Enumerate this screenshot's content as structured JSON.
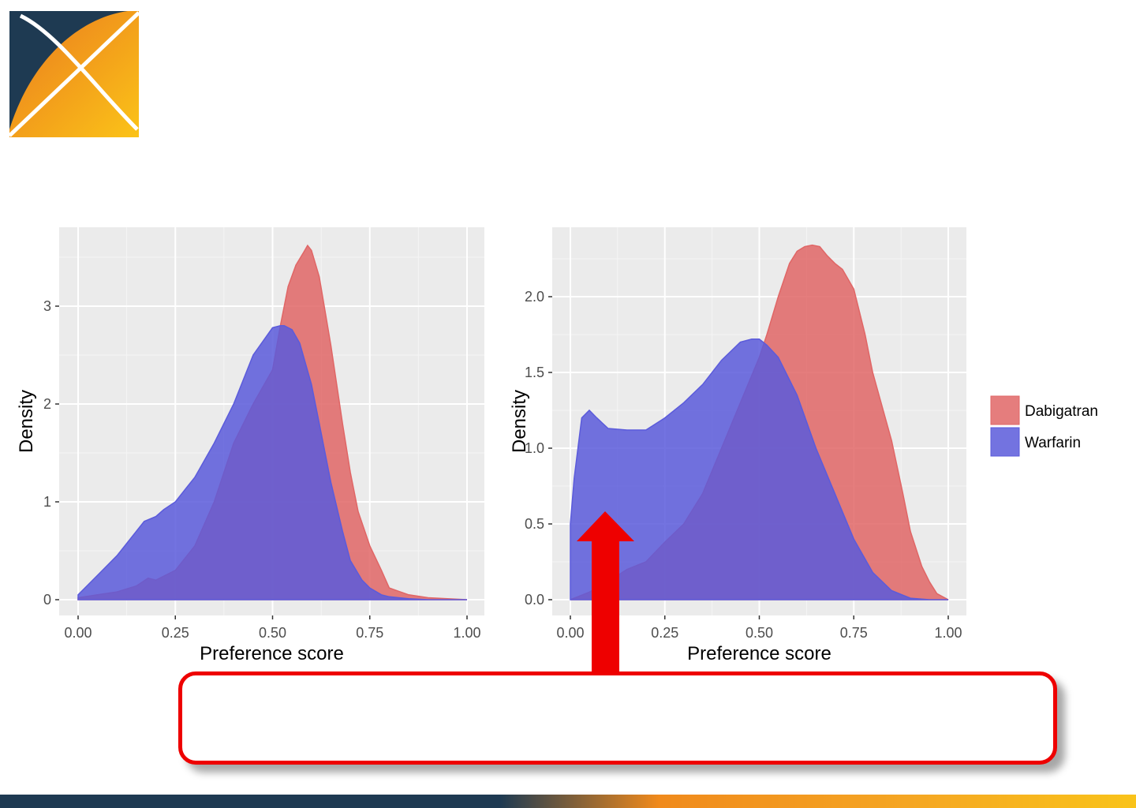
{
  "chart_data": [
    {
      "type": "area",
      "xlabel": "Preference score",
      "ylabel": "Density",
      "xlim": [
        0,
        1
      ],
      "ylim": [
        0,
        3.6
      ],
      "xticks": [
        "0.00",
        "0.25",
        "0.50",
        "0.75",
        "1.00"
      ],
      "yticks": [
        "0",
        "1",
        "2",
        "3"
      ],
      "ytick_values": [
        0,
        1,
        2,
        3
      ],
      "grid": true,
      "series": [
        {
          "name": "Dabigatran",
          "color": "#e06666",
          "x": [
            0.0,
            0.05,
            0.1,
            0.15,
            0.18,
            0.2,
            0.25,
            0.3,
            0.35,
            0.4,
            0.45,
            0.5,
            0.52,
            0.54,
            0.56,
            0.58,
            0.59,
            0.6,
            0.62,
            0.65,
            0.68,
            0.7,
            0.72,
            0.75,
            0.78,
            0.8,
            0.85,
            0.9,
            0.95,
            1.0
          ],
          "y": [
            0.02,
            0.05,
            0.08,
            0.14,
            0.22,
            0.2,
            0.3,
            0.55,
            1.0,
            1.6,
            2.0,
            2.35,
            2.8,
            3.2,
            3.42,
            3.55,
            3.62,
            3.57,
            3.3,
            2.6,
            1.8,
            1.3,
            0.9,
            0.55,
            0.3,
            0.12,
            0.05,
            0.02,
            0.01,
            0.0
          ]
        },
        {
          "name": "Warfarin",
          "color": "#5b5bdb",
          "x": [
            0.0,
            0.05,
            0.1,
            0.15,
            0.17,
            0.2,
            0.22,
            0.25,
            0.28,
            0.3,
            0.35,
            0.4,
            0.45,
            0.5,
            0.52,
            0.53,
            0.55,
            0.57,
            0.6,
            0.62,
            0.65,
            0.68,
            0.7,
            0.73,
            0.75,
            0.78,
            0.8,
            0.85,
            0.9,
            1.0
          ],
          "y": [
            0.05,
            0.25,
            0.45,
            0.7,
            0.8,
            0.85,
            0.92,
            1.0,
            1.15,
            1.25,
            1.6,
            2.0,
            2.5,
            2.78,
            2.8,
            2.8,
            2.76,
            2.62,
            2.2,
            1.8,
            1.2,
            0.7,
            0.4,
            0.2,
            0.12,
            0.05,
            0.03,
            0.01,
            0.0,
            0.0
          ]
        }
      ]
    },
    {
      "type": "area",
      "xlabel": "Preference score",
      "ylabel": "Density",
      "xlim": [
        0,
        1
      ],
      "ylim": [
        0,
        2.4
      ],
      "xticks": [
        "0.00",
        "0.25",
        "0.50",
        "0.75",
        "1.00"
      ],
      "yticks": [
        "0.0",
        "0.5",
        "1.0",
        "1.5",
        "2.0"
      ],
      "ytick_values": [
        0,
        0.5,
        1.0,
        1.5,
        2.0
      ],
      "grid": true,
      "series": [
        {
          "name": "Dabigatran",
          "color": "#e06666",
          "x": [
            0.0,
            0.05,
            0.1,
            0.15,
            0.2,
            0.25,
            0.3,
            0.35,
            0.4,
            0.45,
            0.5,
            0.52,
            0.55,
            0.58,
            0.6,
            0.62,
            0.64,
            0.66,
            0.68,
            0.7,
            0.72,
            0.75,
            0.78,
            0.8,
            0.85,
            0.88,
            0.9,
            0.93,
            0.95,
            0.97,
            1.0
          ],
          "y": [
            0.0,
            0.05,
            0.12,
            0.2,
            0.25,
            0.38,
            0.5,
            0.7,
            1.0,
            1.3,
            1.6,
            1.75,
            2.0,
            2.22,
            2.3,
            2.33,
            2.34,
            2.33,
            2.27,
            2.22,
            2.18,
            2.05,
            1.75,
            1.5,
            1.05,
            0.7,
            0.45,
            0.22,
            0.12,
            0.04,
            0.0
          ]
        },
        {
          "name": "Warfarin",
          "color": "#5b5bdb",
          "x": [
            0.0,
            0.01,
            0.03,
            0.05,
            0.07,
            0.1,
            0.15,
            0.2,
            0.25,
            0.3,
            0.35,
            0.4,
            0.45,
            0.48,
            0.5,
            0.52,
            0.55,
            0.6,
            0.65,
            0.7,
            0.75,
            0.8,
            0.85,
            0.9,
            0.95,
            1.0
          ],
          "y": [
            0.5,
            0.8,
            1.2,
            1.25,
            1.2,
            1.13,
            1.12,
            1.12,
            1.2,
            1.3,
            1.42,
            1.58,
            1.7,
            1.72,
            1.72,
            1.68,
            1.6,
            1.35,
            1.0,
            0.7,
            0.4,
            0.18,
            0.06,
            0.01,
            0.0,
            0.0
          ]
        }
      ]
    }
  ],
  "legend": {
    "items": [
      {
        "label": "Dabigatran",
        "color": "#e06666"
      },
      {
        "label": "Warfarin",
        "color": "#5b5bdb"
      }
    ]
  },
  "colors": {
    "accent_red": "#ee0000",
    "brand_navy": "#1e3a52",
    "brand_orange": "#f5a623"
  },
  "callout": {
    "text": ""
  }
}
